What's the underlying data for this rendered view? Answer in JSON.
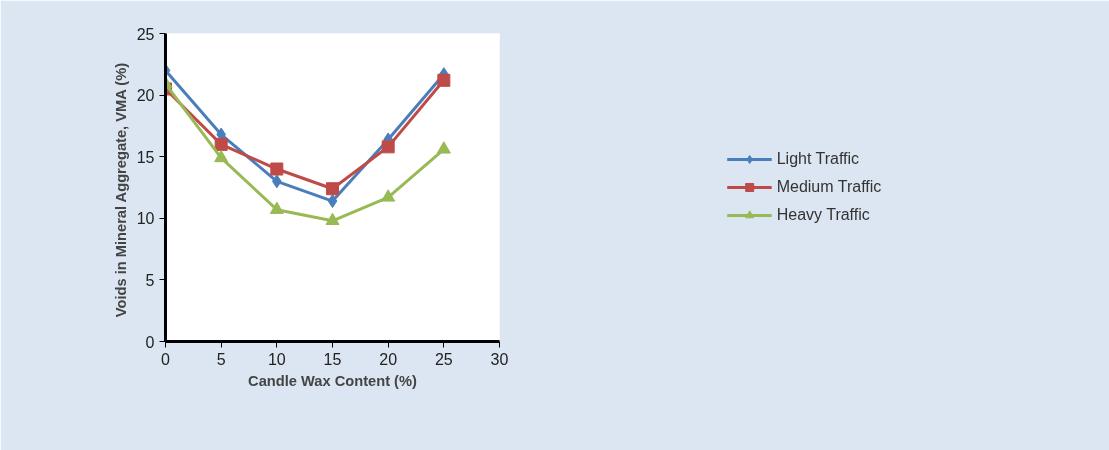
{
  "chart_data": {
    "type": "line",
    "xlabel": "Candle Wax Content (%)",
    "ylabel": "Voids in Mineral Aggregate, VMA  (%)",
    "x": [
      0,
      5,
      10,
      15,
      20,
      25
    ],
    "series": [
      {
        "name": "Light Traffic",
        "color": "#4a7ebb",
        "marker": "diamond",
        "values": [
          22.0,
          16.8,
          13.0,
          11.4,
          16.4,
          21.7
        ]
      },
      {
        "name": "Medium Traffic",
        "color": "#be4b48",
        "marker": "square",
        "values": [
          20.5,
          16.0,
          14.0,
          12.4,
          15.8,
          21.2
        ]
      },
      {
        "name": "Heavy Traffic",
        "color": "#98b954",
        "marker": "triangle",
        "values": [
          20.9,
          14.9,
          10.7,
          9.8,
          11.7,
          15.6
        ]
      }
    ],
    "xlim": [
      0,
      30
    ],
    "xticks": [
      0,
      5,
      10,
      15,
      20,
      25,
      30
    ],
    "ylim": [
      0,
      25
    ],
    "yticks": [
      0,
      5,
      10,
      15,
      20,
      25
    ],
    "grid": false,
    "legend": "right",
    "line_style": "solid"
  }
}
